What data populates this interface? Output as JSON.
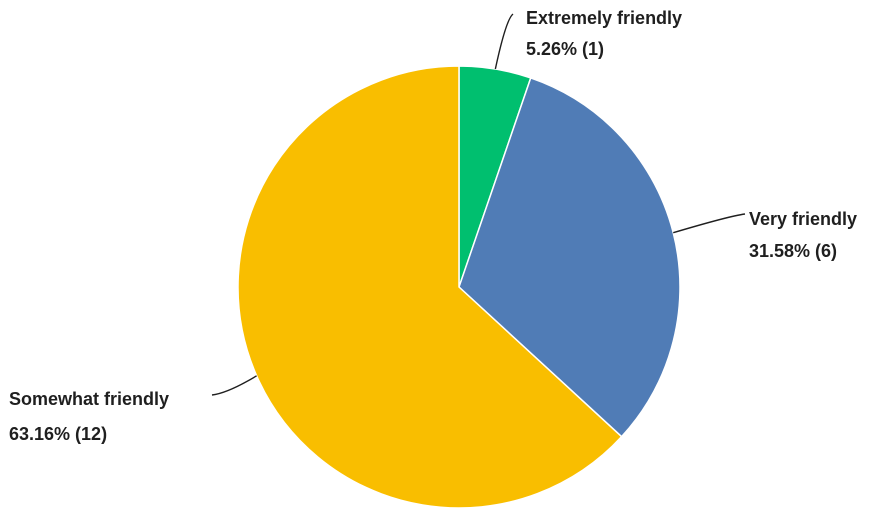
{
  "chart_data": {
    "type": "pie",
    "title": "",
    "legend": "none",
    "slices": [
      {
        "name": "Extremely friendly",
        "value": 5.26,
        "count": 1,
        "percent_label": "5.26% (1)",
        "color": "#00bf6f"
      },
      {
        "name": "Very friendly",
        "value": 31.58,
        "count": 6,
        "percent_label": "31.58% (6)",
        "color": "#507cb6"
      },
      {
        "name": "Somewhat friendly",
        "value": 63.16,
        "count": 12,
        "percent_label": "63.16% (12)",
        "color": "#f9be00"
      }
    ]
  }
}
